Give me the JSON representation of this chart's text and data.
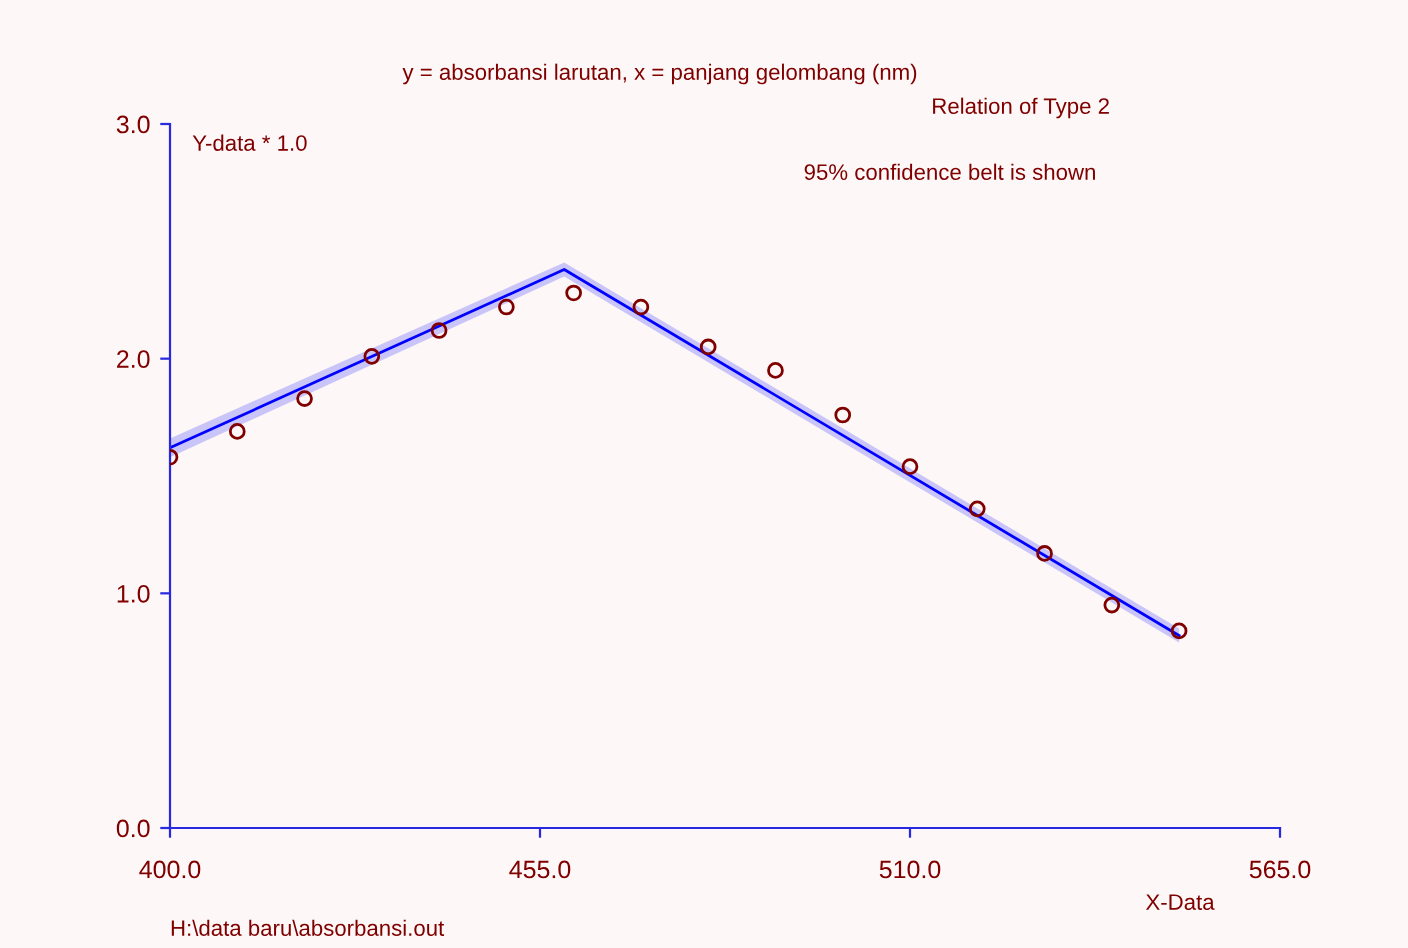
{
  "chart_data": {
    "type": "scatter",
    "title": "y = absorbansi larutan, x = panjang gelombang (nm)",
    "xlabel": "X-Data",
    "ylabel": "Y-data * 1.0",
    "annotations": [
      "Relation of Type 2",
      "95% confidence belt is shown",
      "H:\\data baru\\absorbansi.out"
    ],
    "xlim": [
      400,
      565
    ],
    "xticks": [
      {
        "value": 400,
        "label": "400.0"
      },
      {
        "value": 455,
        "label": "455.0"
      },
      {
        "value": 510,
        "label": "510.0"
      },
      {
        "value": 565,
        "label": "565.0"
      }
    ],
    "ylim": [
      0,
      3
    ],
    "yticks": [
      {
        "value": 0,
        "label": "0.0"
      },
      {
        "value": 1,
        "label": "1.0"
      },
      {
        "value": 2,
        "label": "2.0"
      },
      {
        "value": 3,
        "label": "3.0"
      }
    ],
    "grid": false,
    "marker": "circle",
    "series": [
      {
        "color": "#800000",
        "x": [
          400,
          410,
          420,
          430,
          440,
          450,
          460,
          470,
          480,
          490,
          500,
          510,
          520,
          530,
          540,
          550
        ],
        "values": [
          1.58,
          1.69,
          1.83,
          2.01,
          2.12,
          2.22,
          2.28,
          2.22,
          2.05,
          1.95,
          1.76,
          1.54,
          1.36,
          1.17,
          0.95,
          0.84
        ]
      },
      {
        "type": "line",
        "color": "#0000ff",
        "line_style": "solid",
        "marker": "none",
        "x": [
          400,
          458.6,
          550
        ],
        "values": [
          1.62,
          2.38,
          0.82
        ],
        "lower": [
          1.58,
          2.35,
          0.79
        ],
        "upper": [
          1.66,
          2.41,
          0.85
        ]
      }
    ]
  }
}
